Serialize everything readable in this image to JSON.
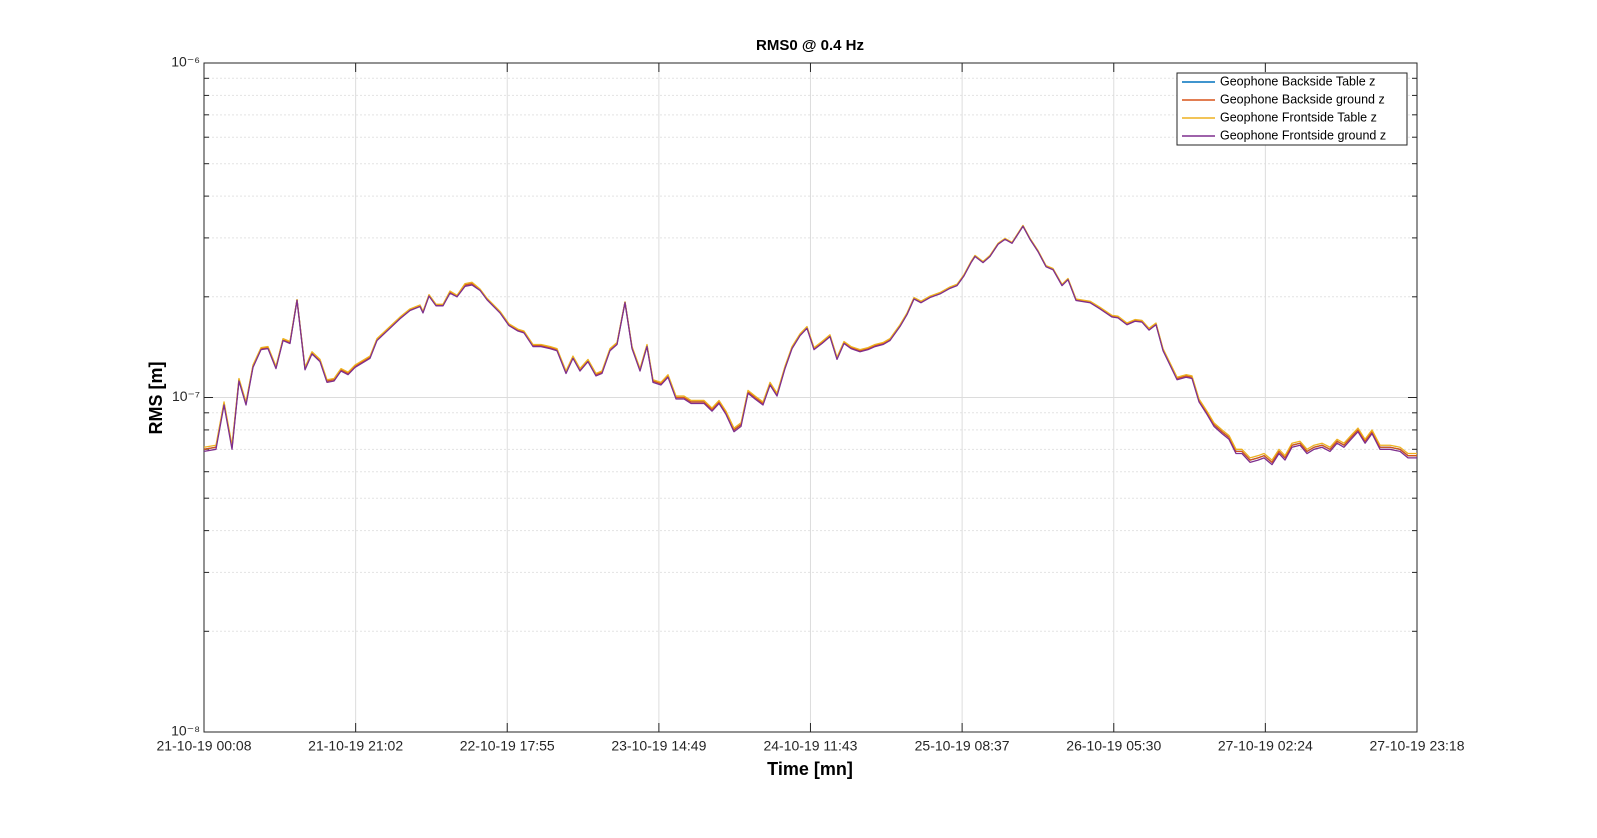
{
  "chart_data": {
    "type": "line",
    "title": "RMS0 @ 0.4 Hz",
    "xlabel": "Time [mn]",
    "ylabel": "RMS [m]",
    "x": [
      0,
      1.65,
      2.76,
      3.86,
      4.82,
      5.79,
      6.75,
      7.86,
      8.82,
      9.92,
      10.89,
      11.85,
      12.82,
      13.92,
      14.88,
      15.99,
      16.95,
      17.92,
      18.88,
      19.85,
      20.81,
      22.88,
      23.84,
      25.63,
      27.01,
      28.39,
      29.77,
      30.18,
      31.01,
      31.97,
      32.94,
      33.9,
      34.87,
      35.97,
      36.93,
      38.04,
      39,
      40.79,
      42.03,
      43.27,
      44.1,
      45.34,
      46.44,
      47.68,
      48.65,
      49.89,
      50.85,
      51.82,
      52.92,
      54.02,
      54.85,
      55.95,
      56.92,
      58.02,
      58.99,
      60.09,
      61.05,
      61.88,
      62.98,
      63.95,
      65.05,
      66.15,
      67.12,
      68.91,
      70.01,
      70.98,
      71.94,
      73.04,
      74.01,
      74.97,
      75.94,
      77.04,
      78.01,
      78.97,
      80.07,
      81.04,
      82.14,
      83.1,
      84.07,
      85.17,
      86.27,
      87.24,
      88.2,
      89.17,
      90.41,
      91.51,
      92.48,
      93.58,
      94.54,
      95.92,
      96.89,
      97.85,
      98.82,
      100.06,
      101.43,
      102.81,
      103.78,
      104.74,
      105.71,
      106.26,
      107.36,
      108.32,
      109.43,
      110.39,
      111.36,
      112.87,
      113.84,
      114.94,
      116.04,
      117.01,
      118.25,
      119.07,
      120.18,
      122.11,
      123.49,
      125.14,
      125.96,
      127.2,
      128.31,
      129.27,
      130.24,
      131.2,
      132.17,
      133.13,
      134.1,
      135.34,
      136.16,
      137.13,
      138.23,
      139.19,
      140.3,
      141.26,
      142.23,
      143.05,
      144.16,
      145.26,
      146.09,
      147.19,
      148.15,
      148.98,
      149.94,
      151.05,
      152.01,
      152.98,
      154.08,
      155.18,
      156.15,
      157.11,
      158.08,
      159.04,
      160.01,
      160.97,
      162.07,
      163.45,
      164.83,
      165.93,
      167.17
    ],
    "series": [
      {
        "name": "Geophone Backside Table z",
        "color": "#0072BD",
        "values": [
          7e-08,
          7.1e-08,
          9.6e-08,
          7.1e-08,
          1.13e-07,
          9.6e-08,
          1.24e-07,
          1.4e-07,
          1.41e-07,
          1.23e-07,
          1.49e-07,
          1.46e-07,
          1.96e-07,
          1.22e-07,
          1.36e-07,
          1.29e-07,
          1.12e-07,
          1.13e-07,
          1.21e-07,
          1.18e-07,
          1.24e-07,
          1.32e-07,
          1.49e-07,
          1.62e-07,
          1.73e-07,
          1.83e-07,
          1.88e-07,
          1.8e-07,
          2.02e-07,
          1.89e-07,
          1.89e-07,
          2.07e-07,
          2.01e-07,
          2.17e-07,
          2.19e-07,
          2.1e-07,
          1.97e-07,
          1.8e-07,
          1.65e-07,
          1.59e-07,
          1.57e-07,
          1.43e-07,
          1.43e-07,
          1.41e-07,
          1.39e-07,
          1.19e-07,
          1.32e-07,
          1.21e-07,
          1.29e-07,
          1.17e-07,
          1.19e-07,
          1.39e-07,
          1.45e-07,
          1.93e-07,
          1.41e-07,
          1.21e-07,
          1.43e-07,
          1.12e-07,
          1.1e-07,
          1.16e-07,
          1e-07,
          1e-07,
          9.7e-08,
          9.7e-08,
          9.2e-08,
          9.7e-08,
          9e-08,
          8e-08,
          8.3e-08,
          1.04e-07,
          1e-07,
          9.6e-08,
          1.1e-07,
          1.02e-07,
          1.23e-07,
          1.41e-07,
          1.54e-07,
          1.62e-07,
          1.4e-07,
          1.46e-07,
          1.53e-07,
          1.31e-07,
          1.46e-07,
          1.41e-07,
          1.38e-07,
          1.4e-07,
          1.43e-07,
          1.45e-07,
          1.49e-07,
          1.64e-07,
          1.78e-07,
          1.98e-07,
          1.93e-07,
          2e-07,
          2.05e-07,
          2.13e-07,
          2.17e-07,
          2.32e-07,
          2.54e-07,
          2.65e-07,
          2.54e-07,
          2.65e-07,
          2.88e-07,
          2.98e-07,
          2.9e-07,
          3.26e-07,
          2.98e-07,
          2.74e-07,
          2.47e-07,
          2.42e-07,
          2.17e-07,
          2.26e-07,
          1.96e-07,
          1.93e-07,
          1.85e-07,
          1.75e-07,
          1.74e-07,
          1.66e-07,
          1.7e-07,
          1.69e-07,
          1.6e-07,
          1.66e-07,
          1.39e-07,
          1.26e-07,
          1.14e-07,
          1.16e-07,
          1.15e-07,
          9.8e-08,
          9e-08,
          8.3e-08,
          7.9e-08,
          7.6e-08,
          6.9e-08,
          6.9e-08,
          6.5e-08,
          6.6e-08,
          6.7e-08,
          6.4e-08,
          6.9e-08,
          6.6e-08,
          7.2e-08,
          7.3e-08,
          6.9e-08,
          7.1e-08,
          7.2e-08,
          7e-08,
          7.4e-08,
          7.2e-08,
          7.6e-08,
          8e-08,
          7.4e-08,
          7.9e-08,
          7.1e-08,
          7.1e-08,
          7e-08,
          6.7e-08,
          6.7e-08
        ]
      },
      {
        "name": "Geophone Backside ground z",
        "color": "#D95319",
        "values": [
          7e-08,
          7.1e-08,
          9.6e-08,
          7.1e-08,
          1.13e-07,
          9.6e-08,
          1.24e-07,
          1.4e-07,
          1.41e-07,
          1.23e-07,
          1.49e-07,
          1.46e-07,
          1.96e-07,
          1.22e-07,
          1.36e-07,
          1.29e-07,
          1.12e-07,
          1.13e-07,
          1.21e-07,
          1.18e-07,
          1.24e-07,
          1.32e-07,
          1.49e-07,
          1.62e-07,
          1.73e-07,
          1.83e-07,
          1.88e-07,
          1.8e-07,
          2.02e-07,
          1.89e-07,
          1.89e-07,
          2.07e-07,
          2.01e-07,
          2.17e-07,
          2.19e-07,
          2.1e-07,
          1.97e-07,
          1.8e-07,
          1.65e-07,
          1.59e-07,
          1.57e-07,
          1.43e-07,
          1.43e-07,
          1.41e-07,
          1.39e-07,
          1.19e-07,
          1.32e-07,
          1.21e-07,
          1.29e-07,
          1.17e-07,
          1.19e-07,
          1.39e-07,
          1.45e-07,
          1.93e-07,
          1.41e-07,
          1.21e-07,
          1.43e-07,
          1.12e-07,
          1.1e-07,
          1.16e-07,
          1e-07,
          1e-07,
          9.7e-08,
          9.7e-08,
          9.2e-08,
          9.7e-08,
          9e-08,
          8e-08,
          8.3e-08,
          1.04e-07,
          1e-07,
          9.6e-08,
          1.1e-07,
          1.02e-07,
          1.23e-07,
          1.41e-07,
          1.54e-07,
          1.62e-07,
          1.4e-07,
          1.46e-07,
          1.53e-07,
          1.31e-07,
          1.46e-07,
          1.41e-07,
          1.38e-07,
          1.4e-07,
          1.43e-07,
          1.45e-07,
          1.49e-07,
          1.64e-07,
          1.78e-07,
          1.98e-07,
          1.93e-07,
          2e-07,
          2.05e-07,
          2.13e-07,
          2.17e-07,
          2.32e-07,
          2.54e-07,
          2.65e-07,
          2.54e-07,
          2.65e-07,
          2.88e-07,
          2.98e-07,
          2.9e-07,
          3.26e-07,
          2.98e-07,
          2.74e-07,
          2.47e-07,
          2.42e-07,
          2.17e-07,
          2.26e-07,
          1.96e-07,
          1.93e-07,
          1.85e-07,
          1.75e-07,
          1.74e-07,
          1.66e-07,
          1.7e-07,
          1.69e-07,
          1.6e-07,
          1.66e-07,
          1.39e-07,
          1.26e-07,
          1.14e-07,
          1.16e-07,
          1.15e-07,
          9.8e-08,
          9e-08,
          8.3e-08,
          7.9e-08,
          7.6e-08,
          6.9e-08,
          6.9e-08,
          6.5e-08,
          6.6e-08,
          6.7e-08,
          6.4e-08,
          6.9e-08,
          6.6e-08,
          7.2e-08,
          7.3e-08,
          6.9e-08,
          7.1e-08,
          7.2e-08,
          7e-08,
          7.4e-08,
          7.2e-08,
          7.6e-08,
          8e-08,
          7.4e-08,
          7.9e-08,
          7.1e-08,
          7.1e-08,
          7e-08,
          6.7e-08,
          6.7e-08
        ]
      },
      {
        "name": "Geophone Frontside Table z",
        "color": "#EDB120",
        "values": [
          7.1e-08,
          7.2e-08,
          9.7e-08,
          7.2e-08,
          1.14e-07,
          9.7e-08,
          1.25e-07,
          1.41e-07,
          1.42e-07,
          1.24e-07,
          1.5e-07,
          1.47e-07,
          1.96e-07,
          1.23e-07,
          1.37e-07,
          1.3e-07,
          1.13e-07,
          1.14e-07,
          1.22e-07,
          1.19e-07,
          1.25e-07,
          1.33e-07,
          1.5e-07,
          1.63e-07,
          1.74e-07,
          1.84e-07,
          1.89e-07,
          1.81e-07,
          2.03e-07,
          1.9e-07,
          1.9e-07,
          2.08e-07,
          2.02e-07,
          2.19e-07,
          2.21e-07,
          2.11e-07,
          1.98e-07,
          1.81e-07,
          1.66e-07,
          1.6e-07,
          1.58e-07,
          1.44e-07,
          1.44e-07,
          1.42e-07,
          1.4e-07,
          1.2e-07,
          1.33e-07,
          1.22e-07,
          1.3e-07,
          1.18e-07,
          1.2e-07,
          1.4e-07,
          1.46e-07,
          1.93e-07,
          1.42e-07,
          1.22e-07,
          1.44e-07,
          1.13e-07,
          1.11e-07,
          1.17e-07,
          1.01e-07,
          1.01e-07,
          9.8e-08,
          9.8e-08,
          9.3e-08,
          9.8e-08,
          9.1e-08,
          8.1e-08,
          8.4e-08,
          1.05e-07,
          1.01e-07,
          9.7e-08,
          1.11e-07,
          1.03e-07,
          1.24e-07,
          1.42e-07,
          1.55e-07,
          1.63e-07,
          1.41e-07,
          1.47e-07,
          1.54e-07,
          1.32e-07,
          1.47e-07,
          1.42e-07,
          1.39e-07,
          1.41e-07,
          1.44e-07,
          1.46e-07,
          1.5e-07,
          1.65e-07,
          1.79e-07,
          1.99e-07,
          1.94e-07,
          2.01e-07,
          2.06e-07,
          2.14e-07,
          2.18e-07,
          2.33e-07,
          2.55e-07,
          2.66e-07,
          2.55e-07,
          2.66e-07,
          2.89e-07,
          2.99e-07,
          2.91e-07,
          3.27e-07,
          2.99e-07,
          2.75e-07,
          2.48e-07,
          2.43e-07,
          2.18e-07,
          2.27e-07,
          1.97e-07,
          1.94e-07,
          1.86e-07,
          1.76e-07,
          1.75e-07,
          1.67e-07,
          1.71e-07,
          1.7e-07,
          1.61e-07,
          1.67e-07,
          1.4e-07,
          1.27e-07,
          1.15e-07,
          1.17e-07,
          1.16e-07,
          9.9e-08,
          9.1e-08,
          8.4e-08,
          8e-08,
          7.7e-08,
          7e-08,
          7e-08,
          6.6e-08,
          6.7e-08,
          6.8e-08,
          6.5e-08,
          7e-08,
          6.7e-08,
          7.3e-08,
          7.4e-08,
          7e-08,
          7.2e-08,
          7.3e-08,
          7.1e-08,
          7.5e-08,
          7.3e-08,
          7.7e-08,
          8.1e-08,
          7.5e-08,
          8e-08,
          7.2e-08,
          7.2e-08,
          7.1e-08,
          6.8e-08,
          6.8e-08
        ]
      },
      {
        "name": "Geophone Frontside ground z",
        "color": "#7E2F8E",
        "values": [
          6.9e-08,
          7e-08,
          9.5e-08,
          7e-08,
          1.12e-07,
          9.5e-08,
          1.23e-07,
          1.39e-07,
          1.4e-07,
          1.22e-07,
          1.48e-07,
          1.45e-07,
          1.95e-07,
          1.21e-07,
          1.35e-07,
          1.28e-07,
          1.11e-07,
          1.12e-07,
          1.2e-07,
          1.17e-07,
          1.23e-07,
          1.31e-07,
          1.48e-07,
          1.61e-07,
          1.72e-07,
          1.82e-07,
          1.87e-07,
          1.79e-07,
          2.01e-07,
          1.88e-07,
          1.88e-07,
          2.05e-07,
          2e-07,
          2.15e-07,
          2.17e-07,
          2.09e-07,
          1.96e-07,
          1.79e-07,
          1.64e-07,
          1.58e-07,
          1.56e-07,
          1.42e-07,
          1.42e-07,
          1.4e-07,
          1.38e-07,
          1.18e-07,
          1.31e-07,
          1.2e-07,
          1.28e-07,
          1.16e-07,
          1.18e-07,
          1.38e-07,
          1.44e-07,
          1.92e-07,
          1.4e-07,
          1.2e-07,
          1.42e-07,
          1.11e-07,
          1.09e-07,
          1.15e-07,
          9.9e-08,
          9.9e-08,
          9.6e-08,
          9.6e-08,
          9.1e-08,
          9.6e-08,
          8.9e-08,
          7.9e-08,
          8.2e-08,
          1.03e-07,
          9.9e-08,
          9.5e-08,
          1.09e-07,
          1.01e-07,
          1.22e-07,
          1.4e-07,
          1.53e-07,
          1.61e-07,
          1.39e-07,
          1.45e-07,
          1.52e-07,
          1.3e-07,
          1.45e-07,
          1.4e-07,
          1.37e-07,
          1.39e-07,
          1.42e-07,
          1.44e-07,
          1.48e-07,
          1.63e-07,
          1.77e-07,
          1.97e-07,
          1.92e-07,
          1.99e-07,
          2.04e-07,
          2.12e-07,
          2.16e-07,
          2.31e-07,
          2.53e-07,
          2.64e-07,
          2.53e-07,
          2.64e-07,
          2.87e-07,
          2.97e-07,
          2.89e-07,
          3.25e-07,
          2.97e-07,
          2.73e-07,
          2.46e-07,
          2.41e-07,
          2.16e-07,
          2.25e-07,
          1.95e-07,
          1.92e-07,
          1.84e-07,
          1.74e-07,
          1.73e-07,
          1.65e-07,
          1.69e-07,
          1.68e-07,
          1.59e-07,
          1.65e-07,
          1.38e-07,
          1.25e-07,
          1.13e-07,
          1.15e-07,
          1.14e-07,
          9.7e-08,
          8.9e-08,
          8.2e-08,
          7.8e-08,
          7.5e-08,
          6.8e-08,
          6.8e-08,
          6.4e-08,
          6.5e-08,
          6.6e-08,
          6.3e-08,
          6.8e-08,
          6.5e-08,
          7.1e-08,
          7.2e-08,
          6.8e-08,
          7e-08,
          7.1e-08,
          6.9e-08,
          7.3e-08,
          7.1e-08,
          7.5e-08,
          7.9e-08,
          7.3e-08,
          7.8e-08,
          7e-08,
          7e-08,
          6.9e-08,
          6.6e-08,
          6.6e-08
        ]
      }
    ],
    "xlim": [
      0,
      167.17
    ],
    "xticks": [
      {
        "value": 0,
        "label": "21-10-19 00:08"
      },
      {
        "value": 20.9,
        "label": "21-10-19 21:02"
      },
      {
        "value": 41.79,
        "label": "22-10-19 17:55"
      },
      {
        "value": 62.69,
        "label": "23-10-19 14:49"
      },
      {
        "value": 83.58,
        "label": "24-10-19 11:43"
      },
      {
        "value": 104.48,
        "label": "25-10-19 08:37"
      },
      {
        "value": 125.38,
        "label": "26-10-19 05:30"
      },
      {
        "value": 146.27,
        "label": "27-10-19 02:24"
      },
      {
        "value": 167.17,
        "label": "27-10-19 23:18"
      }
    ],
    "ylim": [
      1e-08,
      1e-06
    ],
    "yticks": [
      {
        "value": 1e-08,
        "label": "10⁻⁸"
      },
      {
        "value": 1e-07,
        "label": "10⁻⁷"
      },
      {
        "value": 1e-06,
        "label": "10⁻⁶"
      }
    ],
    "log_y": true,
    "grid": true,
    "minor_grid": true,
    "legend": "northeast"
  }
}
